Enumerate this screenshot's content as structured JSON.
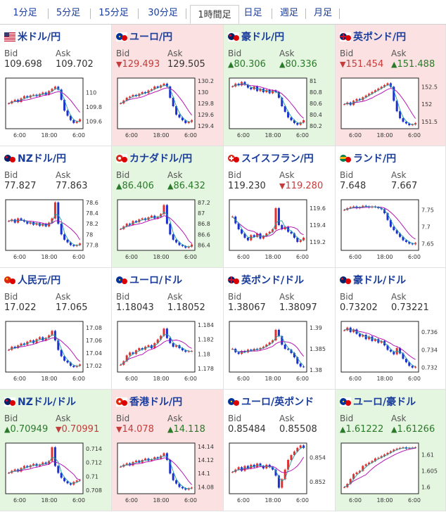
{
  "tabs": [
    "1分足",
    "5分足",
    "15分足",
    "30分足",
    "1時間足",
    "日足",
    "週足",
    "月足"
  ],
  "active_tab": 4,
  "labels": {
    "bid": "Bid",
    "ask": "Ask"
  },
  "colors": {
    "up_bg": "#e4f5e0",
    "down_bg": "#fbe1e1",
    "up": "#2a7a2a",
    "down": "#c43c3c",
    "link": "#1a3d9c",
    "candle_up": "#e03030",
    "candle_down": "#1c2fd0",
    "ma": "#b000b0",
    "ma2": "#20a0a0"
  },
  "pairs": [
    {
      "name": "米ドル/円",
      "icon": "us-flag-icon",
      "state": "neutral",
      "bid": "109.698",
      "ask": "109.702",
      "bid_dir": "",
      "ask_dir": "",
      "chart_data": {
        "type": "candlestick",
        "x_ticks": [
          "6:00",
          "18:00",
          "6:00"
        ],
        "y_ticks": [
          "110",
          "109.8",
          "109.6"
        ],
        "ylim": [
          109.5,
          110.2
        ],
        "series": [
          109.85,
          109.88,
          109.9,
          109.87,
          109.92,
          109.95,
          109.93,
          109.96,
          109.97,
          109.95,
          109.98,
          110.0,
          109.97,
          110.02,
          110.05,
          110.08,
          110.04,
          109.9,
          109.75,
          109.68,
          109.62,
          109.58,
          109.6,
          109.63
        ]
      }
    },
    {
      "name": "ユーロ/円",
      "icon": "eu-flag-icon",
      "state": "down",
      "bid": "129.493",
      "ask": "129.505",
      "bid_dir": "down",
      "ask_dir": "",
      "chart_data": {
        "type": "candlestick",
        "x_ticks": [
          "6:00",
          "18:00",
          "6:00"
        ],
        "y_ticks": [
          "130.2",
          "130",
          "129.8",
          "129.6",
          "129.4"
        ],
        "ylim": [
          129.35,
          130.25
        ],
        "series": [
          129.8,
          129.85,
          129.9,
          129.92,
          129.95,
          129.93,
          129.97,
          130.0,
          129.98,
          130.03,
          130.05,
          130.1,
          130.08,
          130.12,
          130.15,
          130.1,
          129.9,
          129.75,
          129.6,
          129.55,
          129.5,
          129.45,
          129.47,
          129.5
        ]
      }
    },
    {
      "name": "豪ドル/円",
      "icon": "au-flag-icon",
      "state": "up",
      "bid": "80.306",
      "ask": "80.336",
      "bid_dir": "up",
      "ask_dir": "up",
      "chart_data": {
        "type": "candlestick",
        "x_ticks": [
          "6:00",
          "18:00",
          "6:00"
        ],
        "y_ticks": [
          "81",
          "80.8",
          "80.6",
          "80.4",
          "80.2"
        ],
        "ylim": [
          80.15,
          81.05
        ],
        "series": [
          80.9,
          80.95,
          80.92,
          80.98,
          80.93,
          80.88,
          80.85,
          80.9,
          80.82,
          80.86,
          80.8,
          80.84,
          80.78,
          80.83,
          80.8,
          80.7,
          80.55,
          80.45,
          80.35,
          80.3,
          80.25,
          80.22,
          80.26,
          80.3
        ]
      }
    },
    {
      "name": "英ポンド/円",
      "icon": "uk-flag-icon",
      "state": "down",
      "bid": "151.454",
      "ask": "151.488",
      "bid_dir": "down",
      "ask_dir": "up",
      "chart_data": {
        "type": "candlestick",
        "x_ticks": [
          "6:00",
          "18:00",
          "6:00"
        ],
        "y_ticks": [
          "152.5",
          "152",
          "151.5"
        ],
        "ylim": [
          151.3,
          152.75
        ],
        "series": [
          152.0,
          152.05,
          151.98,
          152.1,
          152.15,
          152.12,
          152.2,
          152.25,
          152.3,
          152.35,
          152.4,
          152.45,
          152.5,
          152.55,
          152.6,
          152.5,
          152.1,
          151.8,
          151.6,
          151.5,
          151.45,
          151.4,
          151.42,
          151.46
        ]
      }
    },
    {
      "name": "NZドル/円",
      "icon": "nz-flag-icon",
      "state": "neutral",
      "bid": "77.827",
      "ask": "77.863",
      "bid_dir": "",
      "ask_dir": "",
      "chart_data": {
        "type": "candlestick",
        "x_ticks": [
          "6:00",
          "18:00",
          "6:00"
        ],
        "y_ticks": [
          "78.6",
          "78.4",
          "78.2",
          "78",
          "77.8"
        ],
        "ylim": [
          77.7,
          78.65
        ],
        "series": [
          78.25,
          78.28,
          78.22,
          78.3,
          78.27,
          78.24,
          78.2,
          78.23,
          78.18,
          78.21,
          78.16,
          78.2,
          78.15,
          78.22,
          78.3,
          78.6,
          78.2,
          78.0,
          77.9,
          77.85,
          77.8,
          77.78,
          77.8,
          77.83
        ]
      }
    },
    {
      "name": "カナダドル/円",
      "icon": "ca-flag-icon",
      "state": "up",
      "bid": "86.406",
      "ask": "86.432",
      "bid_dir": "up",
      "ask_dir": "up",
      "chart_data": {
        "type": "candlestick",
        "x_ticks": [
          "6:00",
          "18:00",
          "6:00"
        ],
        "y_ticks": [
          "87.2",
          "87",
          "86.8",
          "86.6",
          "86.4"
        ],
        "ylim": [
          86.3,
          87.25
        ],
        "series": [
          86.7,
          86.75,
          86.8,
          86.78,
          86.85,
          86.83,
          86.88,
          86.9,
          86.87,
          86.92,
          86.95,
          86.9,
          86.93,
          86.98,
          87.15,
          86.8,
          86.6,
          86.5,
          86.45,
          86.4,
          86.38,
          86.35,
          86.37,
          86.41
        ]
      }
    },
    {
      "name": "スイスフラン/円",
      "icon": "ch-flag-icon",
      "state": "neutral",
      "bid": "119.230",
      "ask": "119.280",
      "bid_dir": "",
      "ask_dir": "down",
      "chart_data": {
        "type": "candlestick",
        "x_ticks": [
          "6:00",
          "18:00",
          "6:00"
        ],
        "y_ticks": [
          "119.6",
          "119.4",
          "119.2"
        ],
        "ylim": [
          119.1,
          119.7
        ],
        "series": [
          119.5,
          119.42,
          119.35,
          119.3,
          119.25,
          119.22,
          119.28,
          119.26,
          119.3,
          119.24,
          119.27,
          119.3,
          119.32,
          119.35,
          119.6,
          119.4,
          119.35,
          119.38,
          119.32,
          119.3,
          119.25,
          119.2,
          119.22,
          119.25
        ]
      }
    },
    {
      "name": "ランド/円",
      "icon": "za-flag-icon",
      "state": "neutral",
      "bid": "7.648",
      "ask": "7.667",
      "bid_dir": "",
      "ask_dir": "",
      "chart_data": {
        "type": "candlestick",
        "x_ticks": [
          "6:00",
          "18:00",
          "6:00"
        ],
        "y_ticks": [
          "7.75",
          "7.7",
          "7.65"
        ],
        "ylim": [
          7.63,
          7.78
        ],
        "series": [
          7.75,
          7.755,
          7.758,
          7.76,
          7.755,
          7.758,
          7.762,
          7.76,
          7.757,
          7.76,
          7.758,
          7.755,
          7.752,
          7.74,
          7.72,
          7.7,
          7.69,
          7.68,
          7.67,
          7.66,
          7.655,
          7.65,
          7.648,
          7.652
        ]
      }
    },
    {
      "name": "人民元/円",
      "icon": "cn-flag-icon",
      "state": "neutral",
      "bid": "17.022",
      "ask": "17.065",
      "bid_dir": "",
      "ask_dir": "",
      "chart_data": {
        "type": "candlestick",
        "x_ticks": [
          "6:00",
          "18:00",
          "6:00"
        ],
        "y_ticks": [
          "17.08",
          "17.06",
          "17.04",
          "17.02"
        ],
        "ylim": [
          17.01,
          17.09
        ],
        "series": [
          17.045,
          17.05,
          17.048,
          17.052,
          17.055,
          17.053,
          17.058,
          17.06,
          17.056,
          17.062,
          17.065,
          17.06,
          17.064,
          17.068,
          17.075,
          17.06,
          17.045,
          17.035,
          17.028,
          17.025,
          17.02,
          17.018,
          17.02,
          17.022
        ]
      }
    },
    {
      "name": "ユーロ/ドル",
      "icon": "eu-flag-icon",
      "state": "neutral",
      "bid": "1.18043",
      "ask": "1.18052",
      "bid_dir": "",
      "ask_dir": "",
      "chart_data": {
        "type": "candlestick",
        "x_ticks": [
          "6:00",
          "18:00",
          "6:00"
        ],
        "y_ticks": [
          "1.184",
          "1.182",
          "1.18",
          "1.178"
        ],
        "ylim": [
          1.1775,
          1.1845
        ],
        "series": [
          1.1785,
          1.179,
          1.1798,
          1.1802,
          1.18,
          1.1805,
          1.1808,
          1.1806,
          1.181,
          1.1812,
          1.1808,
          1.1815,
          1.182,
          1.1825,
          1.1835,
          1.1822,
          1.1815,
          1.181,
          1.1812,
          1.1808,
          1.1805,
          1.1803,
          1.1804,
          1.1804
        ]
      }
    },
    {
      "name": "英ポンド/ドル",
      "icon": "uk-flag-icon",
      "state": "neutral",
      "bid": "1.38067",
      "ask": "1.38097",
      "bid_dir": "",
      "ask_dir": "",
      "chart_data": {
        "type": "candlestick",
        "x_ticks": [
          "6:00",
          "18:00",
          "6:00"
        ],
        "y_ticks": [
          "1.39",
          "1.385",
          "1.38"
        ],
        "ylim": [
          1.3795,
          1.3915
        ],
        "series": [
          1.385,
          1.3842,
          1.3838,
          1.3845,
          1.3842,
          1.3848,
          1.3846,
          1.385,
          1.3848,
          1.3852,
          1.3855,
          1.386,
          1.3865,
          1.387,
          1.3895,
          1.388,
          1.386,
          1.385,
          1.3848,
          1.384,
          1.383,
          1.3815,
          1.3808,
          1.3807
        ]
      }
    },
    {
      "name": "豪ドル/ドル",
      "icon": "au-flag-icon",
      "state": "neutral",
      "bid": "0.73202",
      "ask": "0.73221",
      "bid_dir": "",
      "ask_dir": "",
      "chart_data": {
        "type": "candlestick",
        "x_ticks": [
          "6:00",
          "18:00",
          "6:00"
        ],
        "y_ticks": [
          "0.736",
          "0.734",
          "0.732"
        ],
        "ylim": [
          0.7315,
          0.7372
        ],
        "series": [
          0.7362,
          0.7365,
          0.736,
          0.7363,
          0.7358,
          0.7355,
          0.7357,
          0.7352,
          0.7355,
          0.735,
          0.7352,
          0.7348,
          0.735,
          0.7345,
          0.734,
          0.7338,
          0.7335,
          0.7342,
          0.7336,
          0.733,
          0.7326,
          0.7322,
          0.732,
          0.7321
        ]
      }
    },
    {
      "name": "NZドル/ドル",
      "icon": "nz-flag-icon",
      "state": "up",
      "bid": "0.70949",
      "ask": "0.70991",
      "bid_dir": "up",
      "ask_dir": "down",
      "chart_data": {
        "type": "candlestick",
        "x_ticks": [
          "6:00",
          "18:00",
          "6:00"
        ],
        "y_ticks": [
          "0.714",
          "0.712",
          "0.71",
          "0.708"
        ],
        "ylim": [
          0.7075,
          0.7148
        ],
        "series": [
          0.7105,
          0.7108,
          0.711,
          0.7107,
          0.7112,
          0.7115,
          0.7113,
          0.7116,
          0.7118,
          0.7115,
          0.7117,
          0.712,
          0.7118,
          0.7122,
          0.7142,
          0.7115,
          0.7105,
          0.7098,
          0.7093,
          0.709,
          0.7088,
          0.7092,
          0.7094,
          0.7095
        ]
      }
    },
    {
      "name": "香港ドル/円",
      "icon": "hk-flag-icon",
      "state": "down",
      "bid": "14.078",
      "ask": "14.118",
      "bid_dir": "down",
      "ask_dir": "up",
      "chart_data": {
        "type": "candlestick",
        "x_ticks": [
          "6:00",
          "18:00",
          "6:00"
        ],
        "y_ticks": [
          "14.14",
          "14.12",
          "14.1",
          "14.08"
        ],
        "ylim": [
          14.07,
          14.145
        ],
        "series": [
          14.11,
          14.113,
          14.115,
          14.112,
          14.117,
          14.119,
          14.116,
          14.12,
          14.122,
          14.119,
          14.121,
          14.124,
          14.122,
          14.126,
          14.13,
          14.12,
          14.1,
          14.09,
          14.085,
          14.08,
          14.078,
          14.076,
          14.078,
          14.079
        ]
      }
    },
    {
      "name": "ユーロ/英ポンド",
      "icon": "eu-flag-icon",
      "state": "neutral",
      "bid": "0.85484",
      "ask": "0.85508",
      "bid_dir": "",
      "ask_dir": "",
      "chart_data": {
        "type": "candlestick",
        "x_ticks": [
          "6:00",
          "18:00",
          "6:00"
        ],
        "y_ticks": [
          "0.854",
          "0.852"
        ],
        "ylim": [
          0.851,
          0.8552
        ],
        "series": [
          0.8528,
          0.853,
          0.8532,
          0.8529,
          0.8533,
          0.8531,
          0.8534,
          0.8532,
          0.8535,
          0.8533,
          0.8531,
          0.8534,
          0.8532,
          0.853,
          0.8525,
          0.8515,
          0.8522,
          0.853,
          0.8538,
          0.8542,
          0.8545,
          0.8548,
          0.855,
          0.8548
        ]
      }
    },
    {
      "name": "ユーロ/豪ドル",
      "icon": "eu-flag-icon",
      "state": "up",
      "bid": "1.61222",
      "ask": "1.61266",
      "bid_dir": "up",
      "ask_dir": "up",
      "chart_data": {
        "type": "candlestick",
        "x_ticks": [
          "6:00",
          "18:00",
          "6:00"
        ],
        "y_ticks": [
          "1.61",
          "1.605",
          "1.6"
        ],
        "ylim": [
          1.598,
          1.6135
        ],
        "series": [
          1.6,
          1.601,
          1.6025,
          1.604,
          1.6045,
          1.605,
          1.6065,
          1.607,
          1.6075,
          1.608,
          1.6088,
          1.609,
          1.6095,
          1.61,
          1.6105,
          1.611,
          1.6115,
          1.6118,
          1.612,
          1.6122,
          1.6118,
          1.612,
          1.6121,
          1.6122
        ]
      }
    }
  ]
}
